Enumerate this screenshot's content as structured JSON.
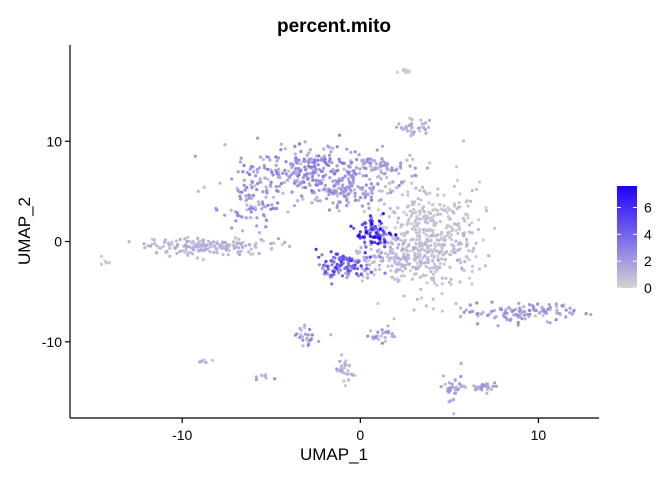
{
  "chart_data": {
    "type": "scatter",
    "title": "percent.mito",
    "xlabel": "UMAP_1",
    "ylabel": "UMAP_2",
    "xlim": [
      -16.3,
      13.4
    ],
    "ylim": [
      -17.6,
      19.6
    ],
    "x_ticks": [
      "-10",
      "0",
      "10"
    ],
    "y_ticks": [
      "10",
      "0",
      "-10"
    ],
    "grid": false,
    "color_scale": {
      "low": "#d3d3d3",
      "high": "#1f00ff",
      "range": [
        0,
        7.6
      ],
      "ticks": [
        "6",
        "4",
        "2",
        "0"
      ],
      "position": "right"
    },
    "clusters": [
      {
        "x": 2.5,
        "y": 17.0,
        "sx": 0.2,
        "sy": 0.2,
        "n": 8,
        "mito": 0.3
      },
      {
        "x": 3.0,
        "y": 11.5,
        "sx": 0.6,
        "sy": 0.4,
        "n": 35,
        "mito": 1.2
      },
      {
        "x": -3.0,
        "y": 7.0,
        "sx": 1.8,
        "sy": 1.3,
        "n": 280,
        "mito": 2.2
      },
      {
        "x": -6.2,
        "y": 4.0,
        "sx": 0.9,
        "sy": 1.4,
        "n": 90,
        "mito": 2.0
      },
      {
        "x": -1.0,
        "y": 5.0,
        "sx": 1.3,
        "sy": 0.8,
        "n": 110,
        "mito": 1.8
      },
      {
        "x": 1.0,
        "y": 7.5,
        "sx": 1.0,
        "sy": 0.6,
        "n": 60,
        "mito": 1.6
      },
      {
        "x": -8.5,
        "y": -0.5,
        "sx": 2.0,
        "sy": 0.4,
        "n": 170,
        "mito": 1.0
      },
      {
        "x": -14.3,
        "y": -2.0,
        "sx": 0.15,
        "sy": 0.15,
        "n": 5,
        "mito": 0.5
      },
      {
        "x": 3.8,
        "y": 0.5,
        "sx": 1.5,
        "sy": 2.8,
        "n": 420,
        "mito": 0.6
      },
      {
        "x": 2.5,
        "y": -1.5,
        "sx": 1.5,
        "sy": 1.2,
        "n": 160,
        "mito": 1.0
      },
      {
        "x": 0.8,
        "y": 0.8,
        "sx": 0.5,
        "sy": 0.7,
        "n": 80,
        "mito": 5.2
      },
      {
        "x": -0.8,
        "y": -2.5,
        "sx": 0.8,
        "sy": 0.8,
        "n": 110,
        "mito": 3.8
      },
      {
        "x": 9.0,
        "y": -7.0,
        "sx": 1.6,
        "sy": 0.5,
        "n": 110,
        "mito": 1.8
      },
      {
        "x": -3.0,
        "y": -9.8,
        "sx": 0.35,
        "sy": 0.6,
        "n": 25,
        "mito": 2.0
      },
      {
        "x": 1.2,
        "y": -9.3,
        "sx": 0.35,
        "sy": 0.3,
        "n": 22,
        "mito": 1.8
      },
      {
        "x": -1.0,
        "y": -12.7,
        "sx": 0.3,
        "sy": 0.8,
        "n": 30,
        "mito": 1.2
      },
      {
        "x": -8.8,
        "y": -12.0,
        "sx": 0.2,
        "sy": 0.15,
        "n": 7,
        "mito": 1.0
      },
      {
        "x": -5.3,
        "y": -13.5,
        "sx": 0.3,
        "sy": 0.15,
        "n": 8,
        "mito": 1.5
      },
      {
        "x": 5.3,
        "y": -14.8,
        "sx": 0.3,
        "sy": 0.8,
        "n": 30,
        "mito": 1.6
      },
      {
        "x": 7.0,
        "y": -14.5,
        "sx": 0.6,
        "sy": 0.3,
        "n": 25,
        "mito": 1.8
      }
    ]
  }
}
